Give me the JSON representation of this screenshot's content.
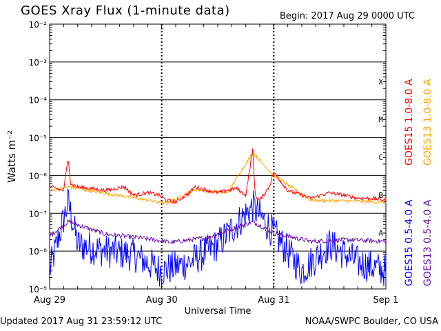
{
  "header": {
    "title": "GOES Xray Flux (1-minute data)",
    "begin": "Begin:  2017 Aug 29 0000 UTC"
  },
  "footer": {
    "updated": "Updated 2017 Aug 31 23:59:12 UTC",
    "credit": "NOAA/SWPC Boulder, CO USA"
  },
  "colors": {
    "goes15_long": "#ff0000",
    "goes13_long": "#ffa500",
    "goes15_short": "#0000ff",
    "goes13_short": "#6a0dad"
  },
  "chart_data": {
    "type": "line",
    "title": "GOES Xray Flux (1-minute data)",
    "xlabel": "Universal Time",
    "ylabel": "Watts m⁻²",
    "yscale": "log",
    "ylim": [
      1e-09,
      0.01
    ],
    "xlim_days": [
      0,
      3
    ],
    "x_ticks": [
      "Aug 29",
      "Aug 30",
      "Aug 31",
      "Sep 1"
    ],
    "y_ticks": [
      "10⁻⁹",
      "10⁻⁸",
      "10⁻⁷",
      "10⁻⁶",
      "10⁻⁵",
      "10⁻⁴",
      "10⁻³",
      "10⁻²"
    ],
    "flare_classes": [
      "X",
      "M",
      "C",
      "B",
      "A"
    ],
    "grid": true,
    "legend_position": "right",
    "series": [
      {
        "name": "GOES15 1.0-8.0 A",
        "color": "#ff0000",
        "x": [
          "Aug 29 00:00",
          "Aug 29 03:00",
          "Aug 29 04:00",
          "Aug 29 04:30",
          "Aug 29 06:00",
          "Aug 29 09:00",
          "Aug 29 12:00",
          "Aug 29 16:00",
          "Aug 29 18:00",
          "Aug 29 21:00",
          "Aug 29 23:30",
          "Aug 30 01:00",
          "Aug 30 03:00",
          "Aug 30 06:00",
          "Aug 30 07:00",
          "Aug 30 10:00",
          "Aug 30 12:00",
          "Aug 30 14:00",
          "Aug 30 16:00",
          "Aug 30 18:00",
          "Aug 30 19:30",
          "Aug 30 20:00",
          "Aug 30 21:00",
          "Aug 30 23:00",
          "Aug 31 00:00",
          "Aug 31 03:00",
          "Aug 31 06:00",
          "Aug 31 08:00",
          "Aug 31 10:00",
          "Aug 31 12:00",
          "Aug 31 15:00",
          "Aug 31 18:00",
          "Aug 31 21:00",
          "Aug 31 23:59"
        ],
        "values": [
          5e-07,
          4e-07,
          3e-06,
          6e-07,
          5e-07,
          4.5e-07,
          4e-07,
          5e-07,
          3e-07,
          3.5e-07,
          3e-07,
          2.2e-07,
          2e-07,
          3.5e-07,
          5e-07,
          4e-07,
          3.5e-07,
          4e-07,
          4.5e-07,
          3e-07,
          5e-06,
          3e-07,
          2.2e-07,
          5e-07,
          1.2e-06,
          4e-07,
          3e-07,
          2.5e-07,
          3e-07,
          3.5e-07,
          3e-07,
          2.5e-07,
          2.5e-07,
          2.2e-07
        ]
      },
      {
        "name": "GOES13 1.0-8.0 A",
        "color": "#ffa500",
        "x": [
          "Aug 29 00:00",
          "Aug 29 04:30",
          "Aug 29 09:00",
          "Aug 29 18:00",
          "Aug 30 01:00",
          "Aug 30 07:00",
          "Aug 30 14:00",
          "Aug 30 19:30",
          "Aug 31 00:00",
          "Aug 31 08:00",
          "Aug 31 18:00",
          "Aug 31 23:59"
        ],
        "values": [
          4e-07,
          5e-07,
          3.8e-07,
          2.6e-07,
          1.8e-07,
          4.2e-07,
          3.4e-07,
          4e-06,
          1e-06,
          2.2e-07,
          2.1e-07,
          1.9e-07
        ]
      },
      {
        "name": "GOES15 0.5-4.0 A",
        "color": "#0000ff",
        "x": [
          "Aug 29 00:00",
          "Aug 29 04:00",
          "Aug 29 06:00",
          "Aug 29 12:00",
          "Aug 29 18:00",
          "Aug 30 00:00",
          "Aug 30 06:00",
          "Aug 30 12:00",
          "Aug 30 19:30",
          "Aug 31 00:00",
          "Aug 31 06:00",
          "Aug 31 12:00",
          "Aug 31 18:00",
          "Aug 31 23:59"
        ],
        "values": [
          3e-09,
          2e-07,
          1.5e-08,
          1e-08,
          8e-09,
          3e-09,
          5e-09,
          1.5e-08,
          1.5e-07,
          3e-08,
          3e-09,
          1.5e-08,
          5e-09,
          3e-09
        ]
      },
      {
        "name": "GOES13 0.5-4.0 A",
        "color": "#6a0dad",
        "x": [
          "Aug 29 00:00",
          "Aug 29 04:00",
          "Aug 29 12:00",
          "Aug 29 20:00",
          "Aug 30 02:00",
          "Aug 30 10:00",
          "Aug 30 19:30",
          "Aug 31 00:00",
          "Aug 31 08:00",
          "Aug 31 16:00",
          "Aug 31 23:59"
        ],
        "values": [
          2.5e-08,
          6e-08,
          2.8e-08,
          2.2e-08,
          1.7e-08,
          2.3e-08,
          6e-08,
          3e-08,
          1.8e-08,
          2e-08,
          1.8e-08
        ]
      }
    ]
  }
}
